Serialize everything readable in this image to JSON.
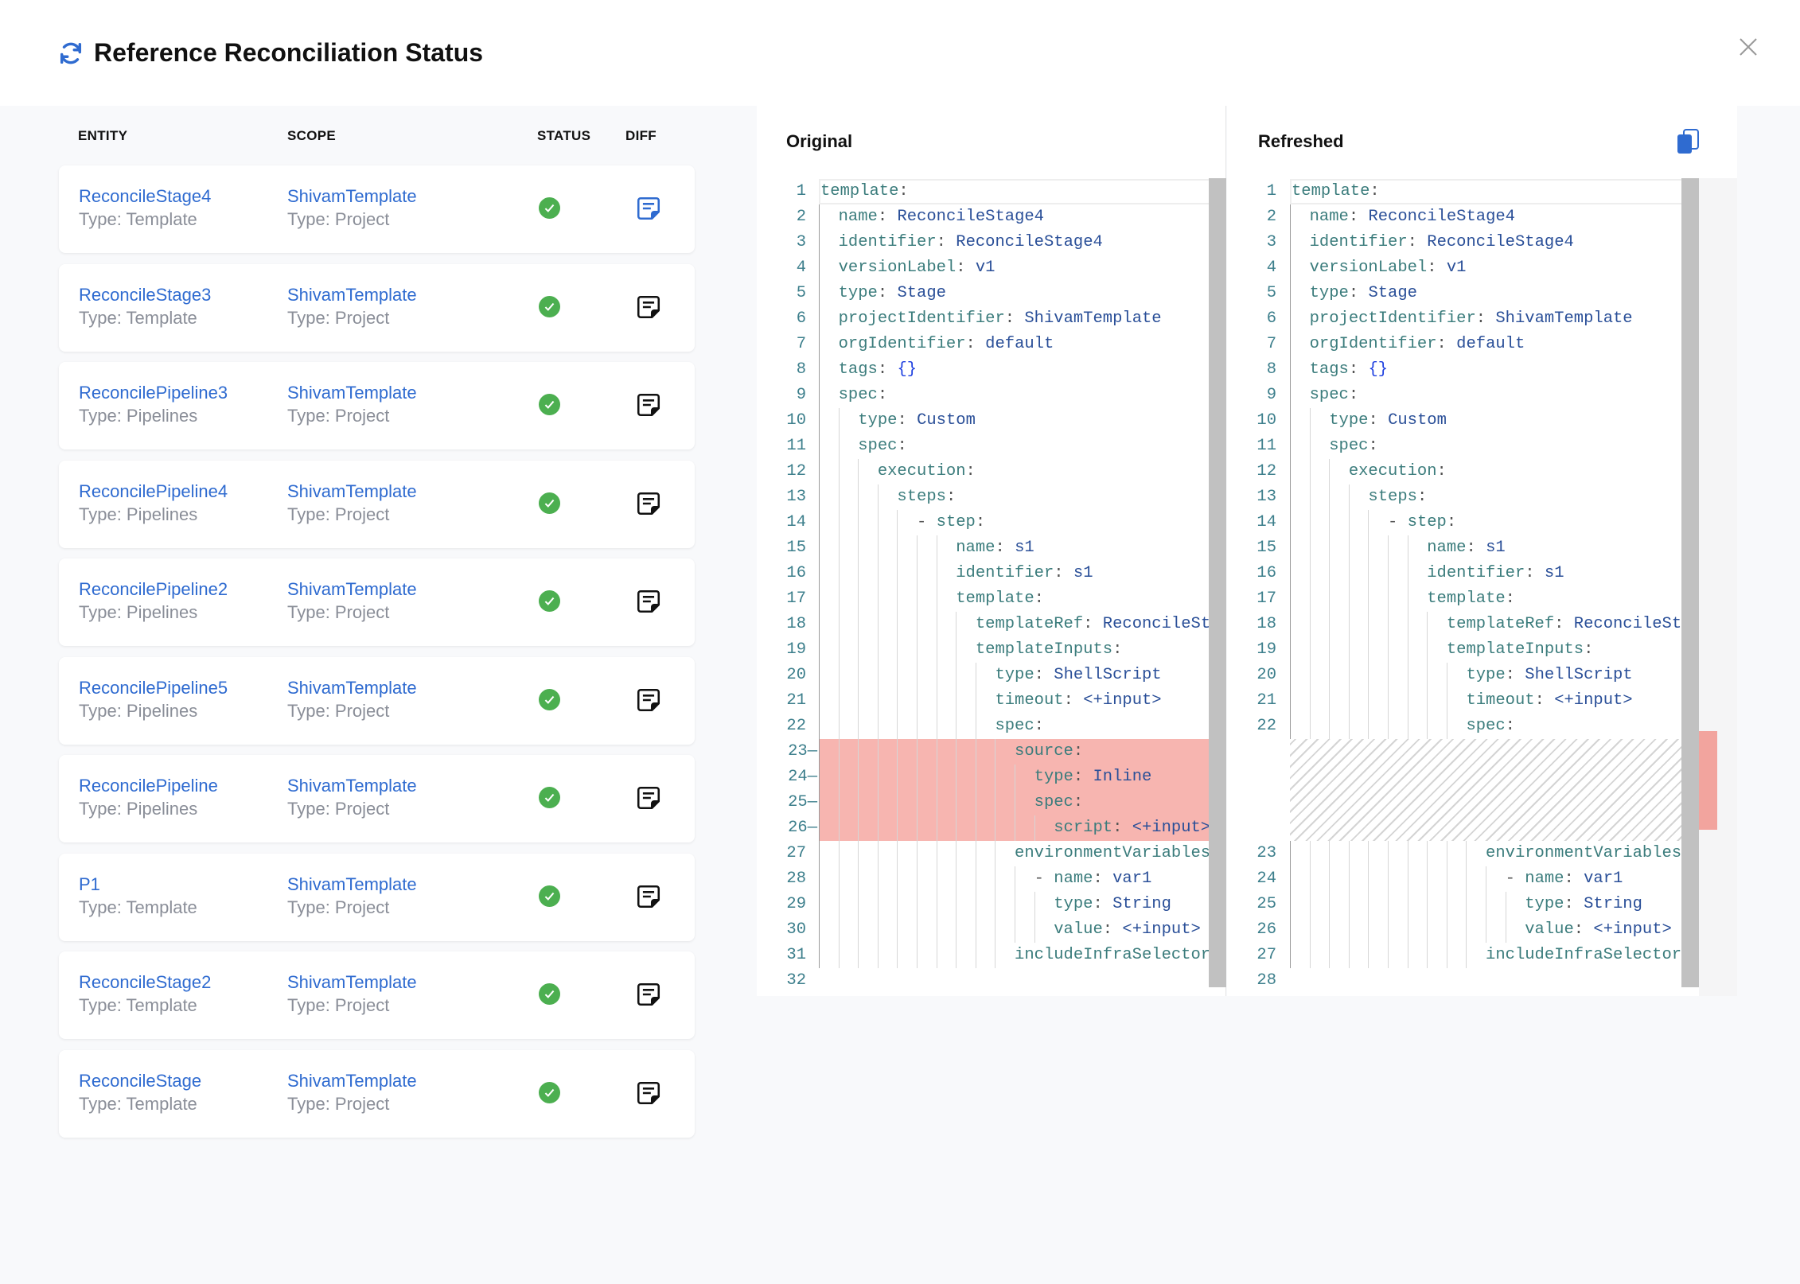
{
  "dialog": {
    "title": "Reference Reconciliation Status",
    "title_icon": "refresh-icon",
    "close_icon": "close-icon"
  },
  "table": {
    "headers": {
      "entity": "ENTITY",
      "scope": "SCOPE",
      "status": "STATUS",
      "diff": "DIFF"
    },
    "rows": [
      {
        "name": "ReconcileStage4",
        "type": "Type: Template",
        "scope": "ShivamTemplate",
        "scope_type": "Type: Project",
        "status": "success",
        "selected": true
      },
      {
        "name": "ReconcileStage3",
        "type": "Type: Template",
        "scope": "ShivamTemplate",
        "scope_type": "Type: Project",
        "status": "success",
        "selected": false
      },
      {
        "name": "ReconcilePipeline3",
        "type": "Type: Pipelines",
        "scope": "ShivamTemplate",
        "scope_type": "Type: Project",
        "status": "success",
        "selected": false
      },
      {
        "name": "ReconcilePipeline4",
        "type": "Type: Pipelines",
        "scope": "ShivamTemplate",
        "scope_type": "Type: Project",
        "status": "success",
        "selected": false
      },
      {
        "name": "ReconcilePipeline2",
        "type": "Type: Pipelines",
        "scope": "ShivamTemplate",
        "scope_type": "Type: Project",
        "status": "success",
        "selected": false
      },
      {
        "name": "ReconcilePipeline5",
        "type": "Type: Pipelines",
        "scope": "ShivamTemplate",
        "scope_type": "Type: Project",
        "status": "success",
        "selected": false
      },
      {
        "name": "ReconcilePipeline",
        "type": "Type: Pipelines",
        "scope": "ShivamTemplate",
        "scope_type": "Type: Project",
        "status": "success",
        "selected": false
      },
      {
        "name": "P1",
        "type": "Type: Template",
        "scope": "ShivamTemplate",
        "scope_type": "Type: Project",
        "status": "success",
        "selected": false
      },
      {
        "name": "ReconcileStage2",
        "type": "Type: Template",
        "scope": "ShivamTemplate",
        "scope_type": "Type: Project",
        "status": "success",
        "selected": false
      },
      {
        "name": "ReconcileStage",
        "type": "Type: Template",
        "scope": "ShivamTemplate",
        "scope_type": "Type: Project",
        "status": "success",
        "selected": false
      }
    ]
  },
  "diff": {
    "original_label": "Original",
    "refreshed_label": "Refreshed",
    "copy_icon": "copy-icon",
    "colors": {
      "removed": "#f7b5b0",
      "accent": "#2f6bd0",
      "success": "#4caf50"
    },
    "original": [
      "template:",
      "  name: ReconcileStage4",
      "  identifier: ReconcileStage4",
      "  versionLabel: v1",
      "  type: Stage",
      "  projectIdentifier: ShivamTemplate",
      "  orgIdentifier: default",
      "  tags: {}",
      "  spec:",
      "    type: Custom",
      "    spec:",
      "      execution:",
      "        steps:",
      "          - step:",
      "              name: s1",
      "              identifier: s1",
      "              template:",
      "                templateRef: ReconcileSte",
      "                templateInputs:",
      "                  type: ShellScript",
      "                  timeout: <+input>",
      "                  spec:",
      "                    source:",
      "                      type: Inline",
      "                      spec:",
      "                        script: <+input>",
      "                    environmentVariables:",
      "                      - name: var1",
      "                        type: String",
      "                        value: <+input>",
      "                    includeInfraSelectors",
      ""
    ],
    "removed_lines": [
      23,
      24,
      25,
      26
    ],
    "refreshed": [
      "template:",
      "  name: ReconcileStage4",
      "  identifier: ReconcileStage4",
      "  versionLabel: v1",
      "  type: Stage",
      "  projectIdentifier: ShivamTemplate",
      "  orgIdentifier: default",
      "  tags: {}",
      "  spec:",
      "    type: Custom",
      "    spec:",
      "      execution:",
      "        steps:",
      "          - step:",
      "              name: s1",
      "              identifier: s1",
      "              template:",
      "                templateRef: ReconcileSte",
      "                templateInputs:",
      "                  type: ShellScript",
      "                  timeout: <+input>",
      "                  spec:",
      "                    environmentVariables:",
      "                      - name: var1",
      "                        type: String",
      "                        value: <+input>",
      "                    includeInfraSelectors",
      ""
    ]
  }
}
